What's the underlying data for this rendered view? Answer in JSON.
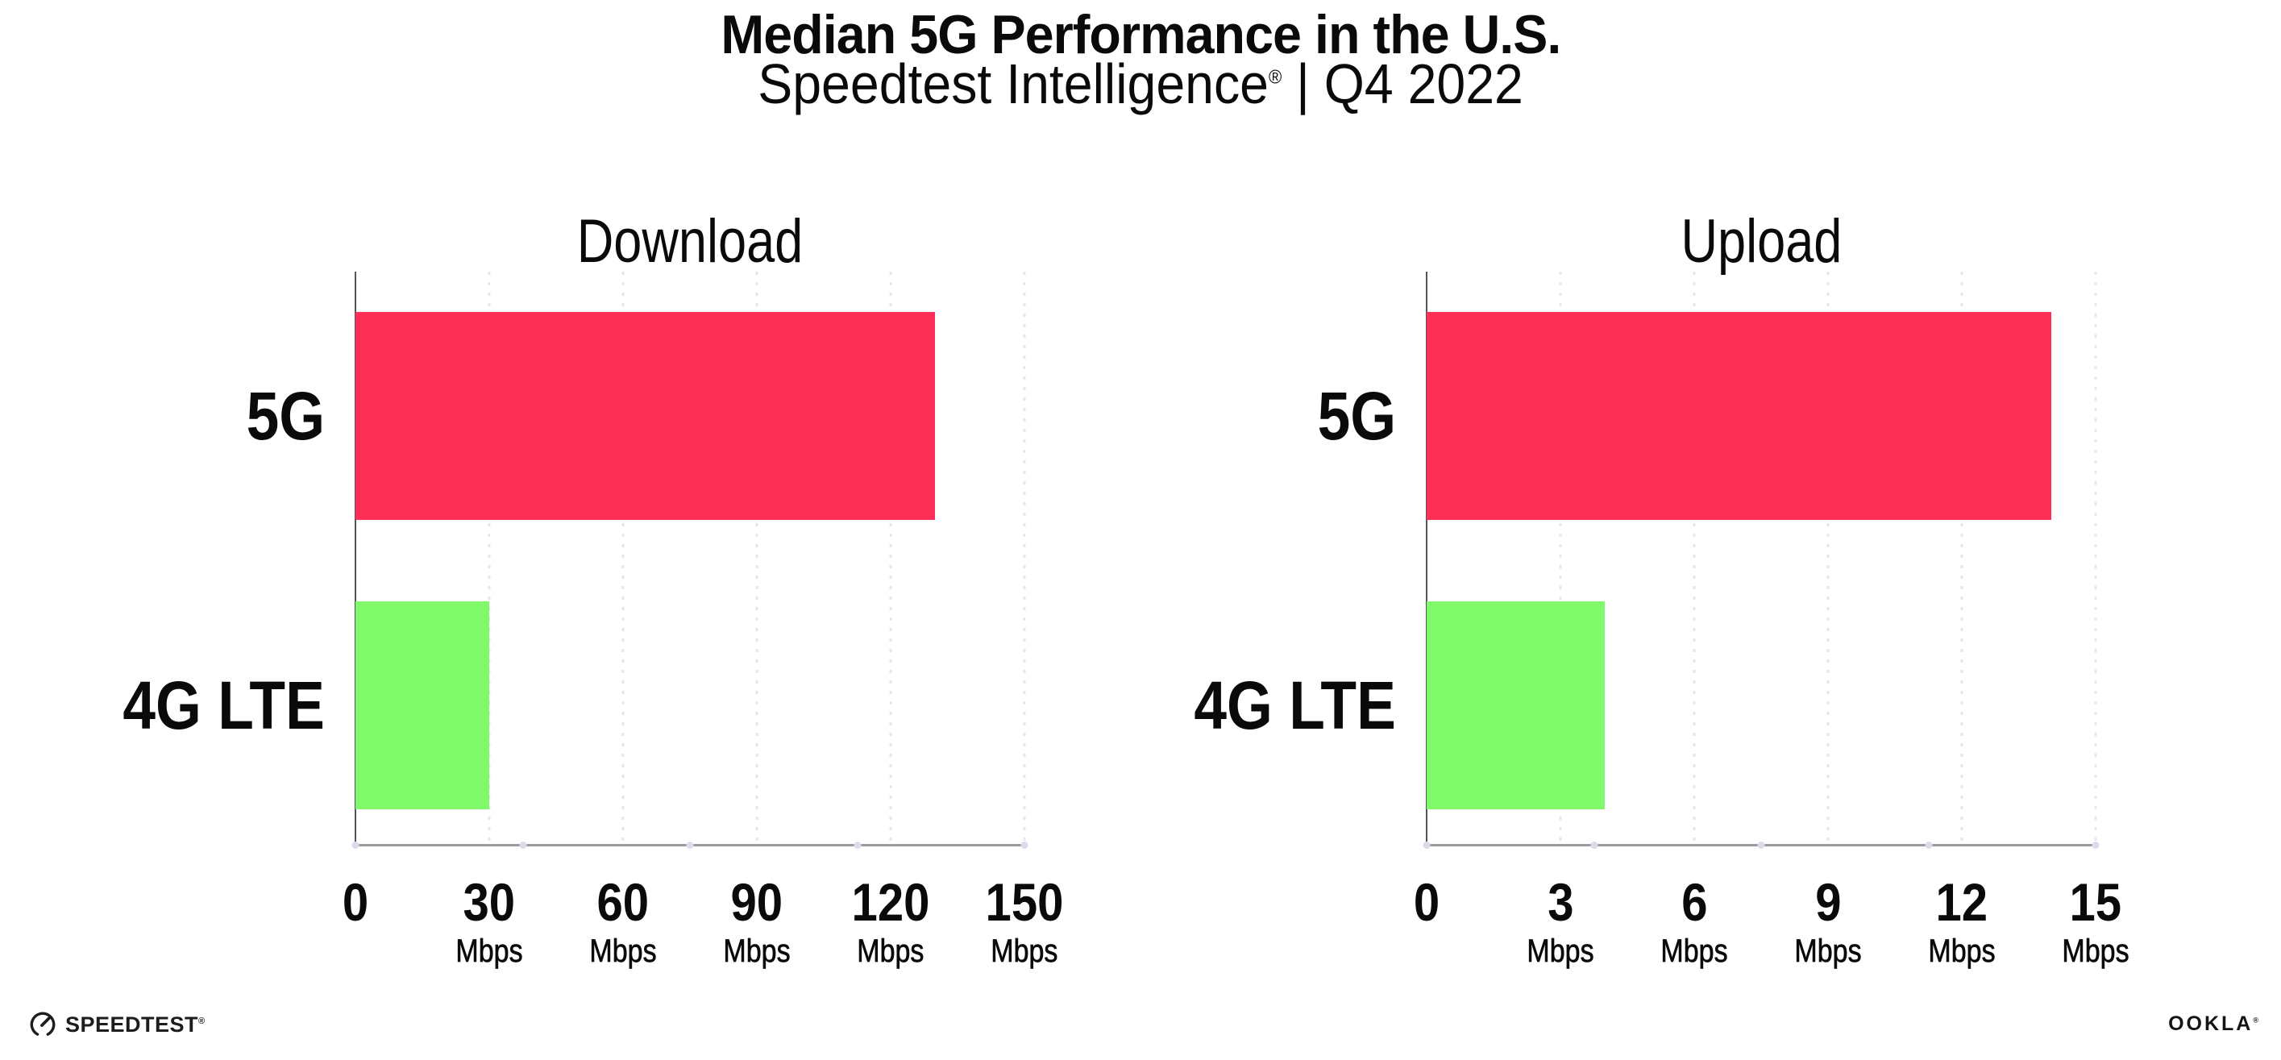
{
  "header": {
    "title": "Median 5G Performance in the U.S.",
    "subtitle": {
      "brand": "Speedtest Intelligence",
      "mark": "®",
      "rest": " | Q4 2022"
    }
  },
  "chart_data": [
    {
      "type": "bar",
      "orientation": "horizontal",
      "title": "Download",
      "categories": [
        "5G",
        "4G LTE"
      ],
      "values": [
        130,
        30
      ],
      "unit": "Mbps",
      "xlim": [
        0,
        150
      ],
      "xticks": [
        0,
        30,
        60,
        90,
        120,
        150
      ],
      "tick_unit": "Mbps",
      "bar_colors": [
        "#FD2F57",
        "#80FA6B"
      ],
      "grid": "dotted-vertical",
      "legend": "none"
    },
    {
      "type": "bar",
      "orientation": "horizontal",
      "title": "Upload",
      "categories": [
        "5G",
        "4G LTE"
      ],
      "values": [
        14,
        4
      ],
      "unit": "Mbps",
      "xlim": [
        0,
        15
      ],
      "xticks": [
        0,
        3,
        6,
        9,
        12,
        15
      ],
      "tick_unit": "Mbps",
      "bar_colors": [
        "#FD2F57",
        "#80FA6B"
      ],
      "grid": "dotted-vertical",
      "legend": "none"
    }
  ],
  "colors": {
    "bar_5g": "#FD2F57",
    "bar_4g_lte": "#80FA6B",
    "text": "#0A0A0A",
    "x_axis_line": "#9A9AA0",
    "y_axis_line": "#54545C",
    "gridline_dots": "#E6E6F2",
    "axis_quarter_dots": "#D9DCE9",
    "background": "#FFFFFF"
  },
  "footer": {
    "speedtest": {
      "label": "SPEEDTEST",
      "mark": "®"
    },
    "ookla": {
      "label": "OOKLA",
      "mark": "®"
    }
  }
}
